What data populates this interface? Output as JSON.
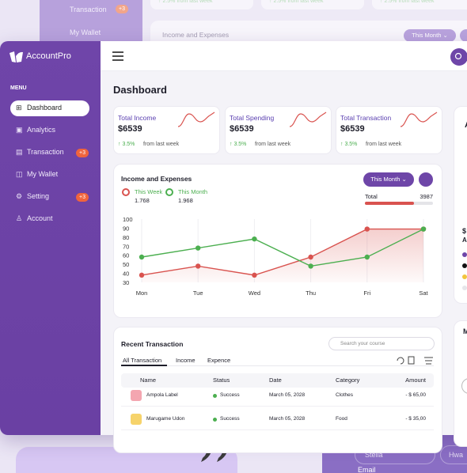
{
  "background": {
    "menu": [
      {
        "label": "Transaction",
        "badge": "+3"
      },
      {
        "label": "My Wallet"
      }
    ],
    "growth": [
      "↑ 2.5% from last week",
      "↑ 2.5% from last week",
      "↑ 2.5% from last week"
    ],
    "card_title": "Income and Expenses",
    "button": "This Month ⌄"
  },
  "sidebar": {
    "brand": "AccountPro",
    "menu_label": "MENU",
    "items": [
      {
        "icon": "⊞",
        "label": "Dashboard"
      },
      {
        "icon": "▣",
        "label": "Analytics"
      },
      {
        "icon": "▤",
        "label": "Transaction",
        "badge": "+3"
      },
      {
        "icon": "◫",
        "label": "My Wallet"
      },
      {
        "icon": "⚙",
        "label": "Setting",
        "badge": "+3"
      },
      {
        "icon": "♙",
        "label": "Account"
      }
    ]
  },
  "page_title": "Dashboard",
  "stats": [
    {
      "title": "Total Income",
      "value": "$6539",
      "change": "↑ 3.5%",
      "note": "from last week"
    },
    {
      "title": "Total Spending",
      "value": "$6539",
      "change": "↑ 3.5%",
      "note": "from last week"
    },
    {
      "title": "Total Transaction",
      "value": "$6539",
      "change": "↑ 3.5%",
      "note": "from last week"
    }
  ],
  "income_chart": {
    "type": "line",
    "title": "Income and Expenses",
    "button": "This Month ⌄",
    "total_label": "Total",
    "total_value": "3987",
    "categories": [
      "Mon",
      "Tue",
      "Wed",
      "Thu",
      "Fri",
      "Sat"
    ],
    "series": [
      {
        "name": "This Week",
        "total": "1.768",
        "color": "#d9534f",
        "values": [
          38,
          48,
          38,
          58,
          89,
          89
        ]
      },
      {
        "name": "This Month",
        "total": "1.968",
        "color": "#4caf50",
        "values": [
          58,
          68,
          78,
          48,
          58,
          89
        ]
      }
    ],
    "ylim": [
      30,
      100
    ],
    "yticks": [
      30,
      40,
      50,
      60,
      70,
      80,
      90,
      100
    ]
  },
  "transactions": {
    "title": "Recent Transaction",
    "search_placeholder": "Search your course",
    "tabs": [
      "All Transaction",
      "Income",
      "Expence"
    ],
    "columns": [
      "Name",
      "Status",
      "Date",
      "Category",
      "Amount"
    ],
    "rows": [
      [
        "Ampola Label",
        "Success",
        "March 05, 2028",
        "Clothes",
        "- $ 65,00"
      ],
      [
        "Marugame Udon",
        "Success",
        "March 05, 2028",
        "Food",
        "- $ 35,00"
      ]
    ]
  },
  "right_panel": {
    "letters": [
      "A",
      "$",
      "A",
      "M"
    ]
  },
  "form": {
    "first": "Stella",
    "last": "Hwa",
    "email_label": "Email"
  }
}
